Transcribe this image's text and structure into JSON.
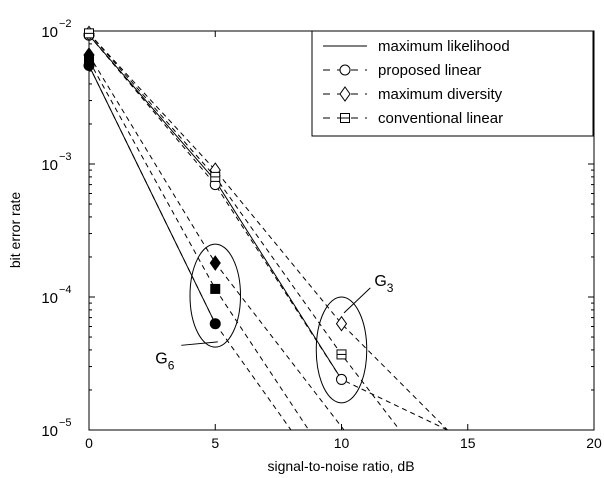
{
  "chart_data": {
    "type": "line",
    "xlabel": "signal-to-noise ratio, dB",
    "ylabel": "bit error rate",
    "x_scale": "linear",
    "y_scale": "log",
    "xlim": [
      0,
      20
    ],
    "ylim": [
      1e-05,
      0.01
    ],
    "x_ticks": [
      "0",
      "5",
      "10",
      "15",
      "20"
    ],
    "y_ticks": [
      {
        "base": "10",
        "exp": "−5",
        "value": 1e-05
      },
      {
        "base": "10",
        "exp": "−4",
        "value": 0.0001
      },
      {
        "base": "10",
        "exp": "−3",
        "value": 0.001
      },
      {
        "base": "10",
        "exp": "−2",
        "value": 0.01
      }
    ],
    "grid": false,
    "legend": {
      "position": "top-right",
      "entries": [
        {
          "label": "maximum likelihood",
          "line": "solid",
          "marker": "none"
        },
        {
          "label": "proposed linear",
          "line": "dashed",
          "marker": "circle"
        },
        {
          "label": "maximum diversity",
          "line": "dashed",
          "marker": "diamond"
        },
        {
          "label": "conventional linear",
          "line": "dashed",
          "marker": "square"
        }
      ]
    },
    "series": [
      {
        "group": "G3",
        "name": "maximum likelihood",
        "line": "solid",
        "marker": "none",
        "x": [
          0,
          5,
          10
        ],
        "y": [
          0.0093,
          0.00075,
          2.4e-05
        ]
      },
      {
        "group": "G3",
        "name": "proposed linear",
        "line": "dashed",
        "marker": "circle-open",
        "x": [
          0,
          5,
          10,
          14.2
        ],
        "y": [
          0.0093,
          0.0007,
          2.4e-05,
          1e-05
        ]
      },
      {
        "group": "G3",
        "name": "maximum diversity",
        "line": "dashed",
        "marker": "diamond-open",
        "x": [
          0,
          5,
          10,
          14.2
        ],
        "y": [
          0.0096,
          0.0009,
          6.3e-05,
          1e-05
        ]
      },
      {
        "group": "G3",
        "name": "conventional linear",
        "line": "dashed",
        "marker": "square-open",
        "x": [
          0,
          5,
          10,
          12.3
        ],
        "y": [
          0.0096,
          0.0008,
          3.7e-05,
          1e-05
        ]
      },
      {
        "group": "G6",
        "name": "maximum likelihood",
        "line": "solid",
        "marker": "none",
        "x": [
          0,
          5
        ],
        "y": [
          0.0055,
          6.3e-05
        ]
      },
      {
        "group": "G6",
        "name": "proposed linear",
        "line": "dashed",
        "marker": "circle-filled",
        "x": [
          0,
          5,
          8.0
        ],
        "y": [
          0.0055,
          6.3e-05,
          1e-05
        ]
      },
      {
        "group": "G6",
        "name": "maximum diversity",
        "line": "dashed",
        "marker": "diamond-filled",
        "x": [
          0,
          5,
          10.1
        ],
        "y": [
          0.0066,
          0.00018,
          1e-05
        ]
      },
      {
        "group": "G6",
        "name": "conventional linear",
        "line": "dashed",
        "marker": "square-filled",
        "x": [
          0,
          5,
          8.7
        ],
        "y": [
          0.006,
          0.000115,
          1e-05
        ]
      }
    ],
    "annotations": [
      {
        "label": "G",
        "subscript": "3",
        "ellipse_center": [
          10,
          4e-05
        ],
        "ellipse_span_x": 2.0,
        "ellipse_span_y_decades": [
          1.6e-05,
          0.0001
        ],
        "label_at": [
          11.3,
          0.00013
        ],
        "pointer_end": [
          10.1,
          7.6e-05
        ]
      },
      {
        "label": "G",
        "subscript": "6",
        "ellipse_center": [
          5,
          0.0001
        ],
        "ellipse_span_x": 2.0,
        "ellipse_span_y_decades": [
          4.2e-05,
          0.00025
        ],
        "label_at": [
          3.1,
          3.4e-05
        ],
        "pointer_end": [
          5.1,
          4.6e-05
        ]
      }
    ]
  }
}
